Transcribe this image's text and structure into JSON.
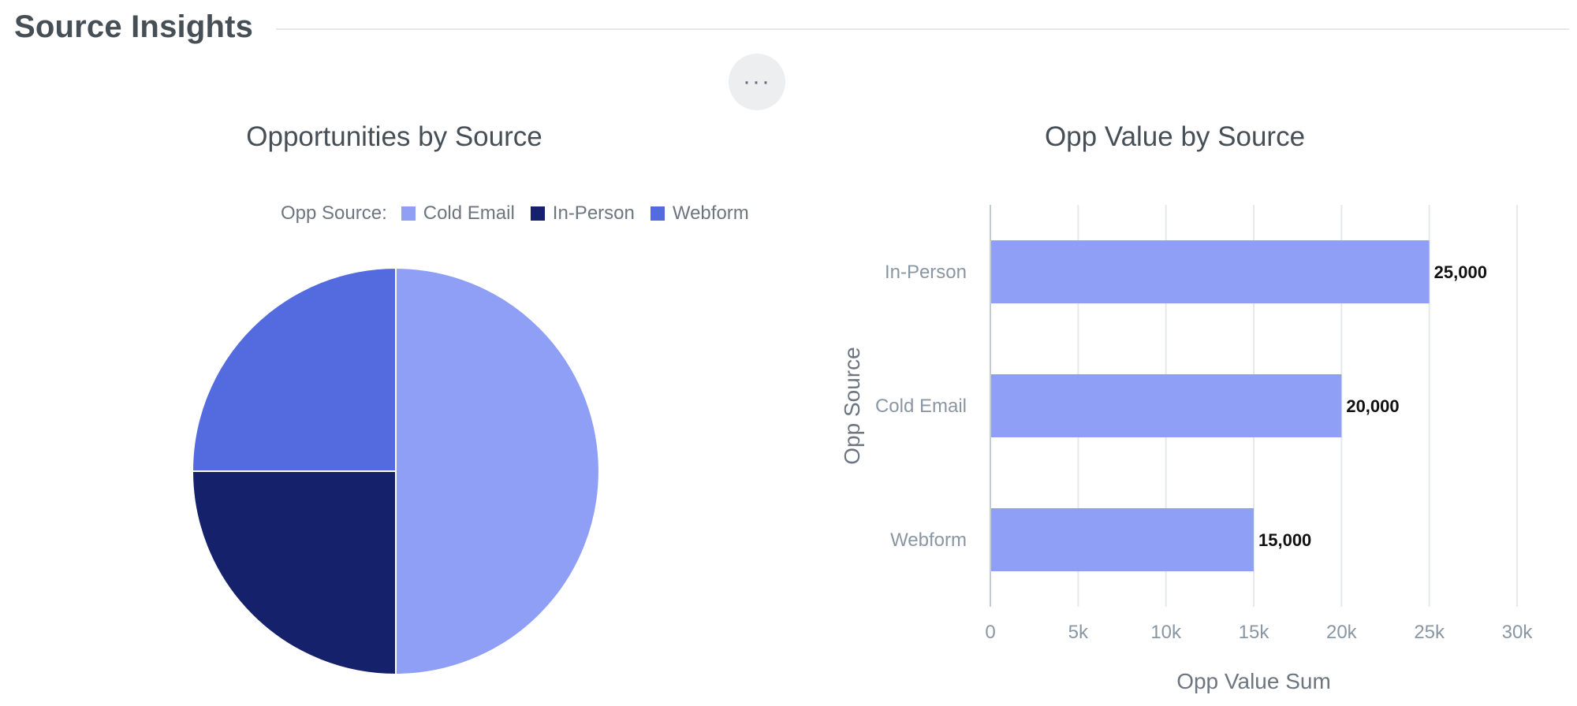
{
  "header": {
    "title": "Source Insights",
    "more_label": "···"
  },
  "colors": {
    "cold_email": "#8f9ff5",
    "in_person": "#15216b",
    "webform": "#536bdf",
    "bar": "#8f9ff5",
    "grid": "#e6e8eb",
    "axis": "#c4ccd5",
    "tick_text": "#8a96a3"
  },
  "chart_data": [
    {
      "type": "pie",
      "title": "Opportunities by Source",
      "legend_title": "Opp Source:",
      "legend_placement": "top",
      "categories": [
        "Cold Email",
        "In-Person",
        "Webform"
      ],
      "values": [
        2,
        1,
        1
      ]
    },
    {
      "type": "bar",
      "orientation": "horizontal",
      "title": "Opp Value by Source",
      "categories": [
        "In-Person",
        "Cold Email",
        "Webform"
      ],
      "values": [
        25000,
        20000,
        15000
      ],
      "value_labels": [
        "25,000",
        "20,000",
        "15,000"
      ],
      "xlabel": "Opp Value Sum",
      "ylabel": "Opp Source",
      "xlim": [
        0,
        30000
      ],
      "xticks": [
        0,
        5000,
        10000,
        15000,
        20000,
        25000,
        30000
      ],
      "xtick_labels": [
        "0",
        "5k",
        "10k",
        "15k",
        "20k",
        "25k",
        "30k"
      ],
      "grid": true
    }
  ]
}
